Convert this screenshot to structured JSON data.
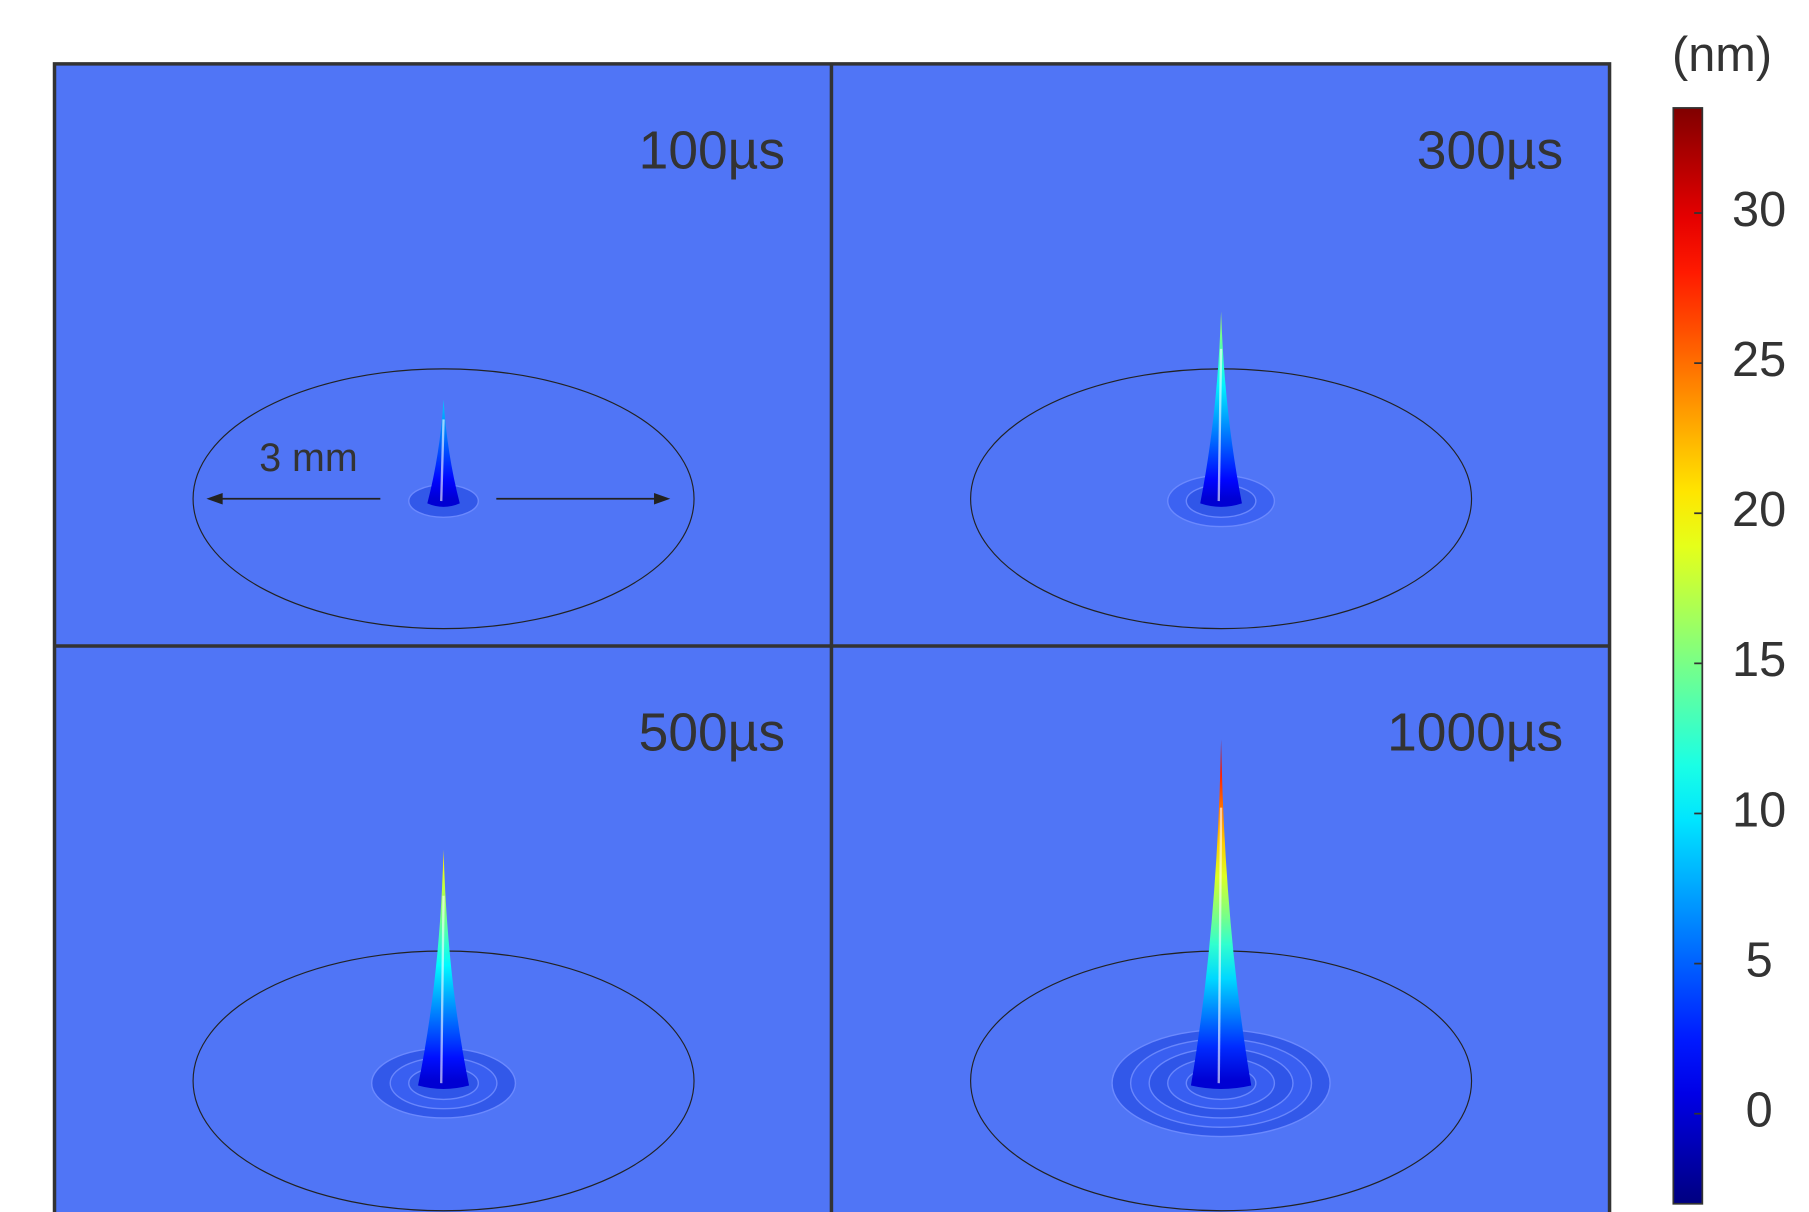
{
  "chart_data": {
    "type": "surface-panels",
    "panels": [
      {
        "label": "100µs",
        "peak": 9
      },
      {
        "label": "300µs",
        "peak": 17
      },
      {
        "label": "500µs",
        "peak": 21
      },
      {
        "label": "1000µs",
        "peak": 31
      }
    ],
    "annotation": "3 mm",
    "colorbar": {
      "label": "(nm)",
      "lim": [
        -3,
        33.5
      ],
      "ticks": [
        0,
        5,
        10,
        15,
        20,
        25,
        30
      ],
      "colormap": "jet"
    },
    "background_color": "#5075f6"
  }
}
